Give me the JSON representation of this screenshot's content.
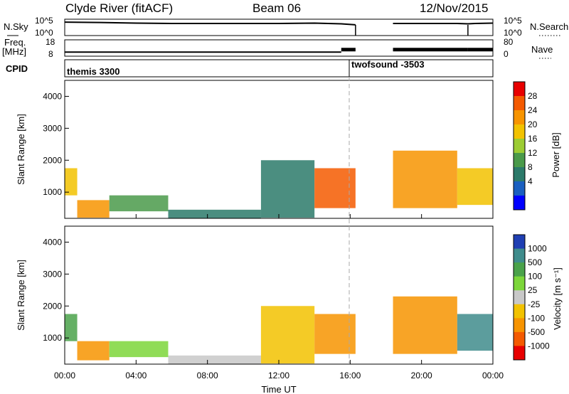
{
  "header": {
    "title": "Clyde River (fitACF)",
    "beam": "Beam 06",
    "date": "12/Nov/2015"
  },
  "chart_data": [
    {
      "type": "line",
      "panel": "nsky_nsearch",
      "left_label": "N.Sky",
      "right_label": "N.Search",
      "left_ticks": [
        "10^5",
        "10^0"
      ],
      "right_ticks": [
        "10^5",
        "10^0"
      ],
      "series": [
        {
          "x": [
            0,
            2,
            4,
            6,
            8,
            10,
            12,
            14,
            15.5,
            16.3
          ],
          "y": [
            0.82,
            0.8,
            0.76,
            0.74,
            0.74,
            0.74,
            0.74,
            0.76,
            0.72,
            0.66
          ]
        },
        {
          "x": [
            18.4,
            19,
            20,
            21,
            22,
            22.6,
            23,
            24
          ],
          "y": [
            0.74,
            0.74,
            0.74,
            0.74,
            0.74,
            0.72,
            0.74,
            0.76
          ]
        }
      ],
      "gaps_hours": [
        [
          16.5,
          18.4
        ]
      ],
      "step_markers_hours": [
        16.3,
        22.6
      ]
    },
    {
      "type": "line",
      "panel": "freq_nave",
      "left_label": "Freq.",
      "left_unit": "[MHz]",
      "right_label": "Nave",
      "left_ticks": [
        18,
        8
      ],
      "right_ticks": [
        80,
        0
      ],
      "series": [
        {
          "x": [
            0,
            15.5
          ],
          "y": [
            10.5,
            10.5
          ]
        },
        {
          "x": [
            15.5,
            16.3
          ],
          "y": [
            12,
            12
          ]
        },
        {
          "x": [
            18.4,
            22.6
          ],
          "y": [
            12,
            12
          ]
        },
        {
          "x": [
            22.6,
            24
          ],
          "y": [
            12,
            12
          ]
        }
      ]
    },
    {
      "type": "table",
      "panel": "cpid",
      "label": "CPID",
      "modes": [
        {
          "start_hour": 0,
          "name": "themis 3300"
        },
        {
          "start_hour": 15.5,
          "name": "twofsound -3503"
        }
      ]
    },
    {
      "type": "heatmap",
      "panel": "power",
      "ylabel": "Slant Range [km]",
      "ylim": [
        180,
        4500
      ],
      "yticks": [
        1000,
        2000,
        3000,
        4000
      ],
      "colorbar_label": "Power [dB]",
      "colorbar_ticks": [
        28,
        24,
        20,
        16,
        12,
        8,
        4
      ],
      "colorbar_colors": [
        "#0000ff",
        "#1a5fc0",
        "#2c7a6a",
        "#4a9a4a",
        "#9ccc33",
        "#f2c200",
        "#f79400",
        "#f45a00",
        "#e80000"
      ],
      "regions": [
        {
          "t0": 0.0,
          "t1": 0.7,
          "r0": 900,
          "r1": 1750,
          "v": 20
        },
        {
          "t0": 0.7,
          "t1": 2.5,
          "r0": 200,
          "r1": 750,
          "v": 24
        },
        {
          "t0": 2.5,
          "t1": 5.8,
          "r0": 400,
          "r1": 900,
          "v": 14
        },
        {
          "t0": 5.8,
          "t1": 11.0,
          "r0": 180,
          "r1": 450,
          "v": 10
        },
        {
          "t0": 11.0,
          "t1": 14.0,
          "r0": 200,
          "r1": 2000,
          "v": 10
        },
        {
          "t0": 14.0,
          "t1": 16.3,
          "r0": 500,
          "r1": 1750,
          "v": 27
        },
        {
          "t0": 18.4,
          "t1": 22.0,
          "r0": 500,
          "r1": 2300,
          "v": 24
        },
        {
          "t0": 22.0,
          "t1": 24.0,
          "r0": 600,
          "r1": 1750,
          "v": 20
        }
      ]
    },
    {
      "type": "heatmap",
      "panel": "velocity",
      "ylabel": "Slant Range [km]",
      "ylim": [
        180,
        4500
      ],
      "yticks": [
        1000,
        2000,
        3000,
        4000
      ],
      "xlabel": "Time UT",
      "xticks": [
        "00:00",
        "04:00",
        "08:00",
        "12:00",
        "16:00",
        "20:00",
        "00:00"
      ],
      "colorbar_label": "Velocity [m s⁻¹]",
      "colorbar_ticks": [
        1000,
        500,
        100,
        25,
        -25,
        -100,
        -500,
        -1000
      ],
      "colorbar_colors": [
        "#1f3fb3",
        "#3f8c8c",
        "#4aa24a",
        "#7cd63a",
        "#c8c8c8",
        "#f2c200",
        "#f79400",
        "#f45a00",
        "#e80000"
      ],
      "regions": [
        {
          "t0": 0.0,
          "t1": 0.7,
          "r0": 900,
          "r1": 1750,
          "v": 300
        },
        {
          "t0": 0.7,
          "t1": 2.5,
          "r0": 300,
          "r1": 900,
          "v": -200
        },
        {
          "t0": 2.5,
          "t1": 5.8,
          "r0": 400,
          "r1": 900,
          "v": 50
        },
        {
          "t0": 5.8,
          "t1": 11.0,
          "r0": 180,
          "r1": 450,
          "v": 0
        },
        {
          "t0": 11.0,
          "t1": 14.0,
          "r0": 200,
          "r1": 2000,
          "v": -80
        },
        {
          "t0": 14.0,
          "t1": 16.3,
          "r0": 500,
          "r1": 1750,
          "v": -450
        },
        {
          "t0": 18.4,
          "t1": 22.0,
          "r0": 500,
          "r1": 2300,
          "v": -150
        },
        {
          "t0": 22.0,
          "t1": 24.0,
          "r0": 600,
          "r1": 1750,
          "v": 600
        }
      ]
    }
  ]
}
